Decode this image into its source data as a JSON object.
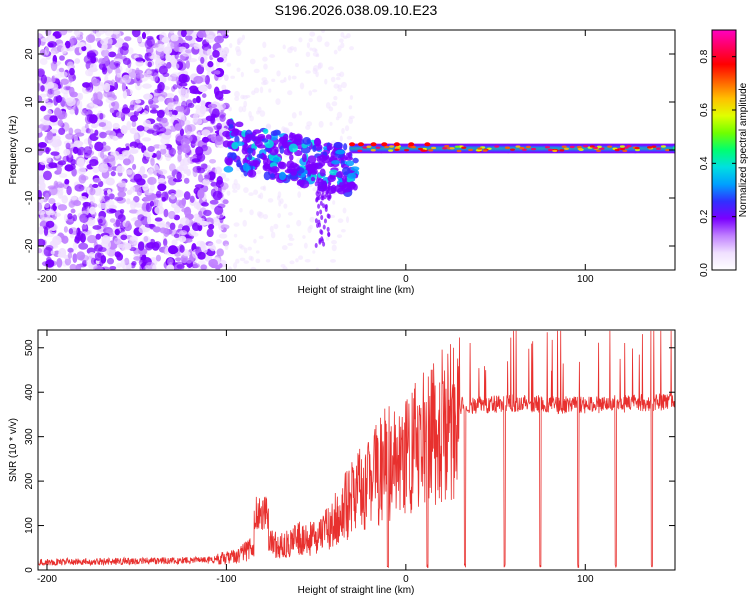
{
  "colors": {
    "signal_line": "#e8302e",
    "colormap": [
      "#ffffff",
      "#f0e0ff",
      "#c080ff",
      "#7a00ff",
      "#3030ff",
      "#00a0ff",
      "#00e0e0",
      "#00ff70",
      "#70ff00",
      "#e0ff00",
      "#ffc000",
      "#ff6000",
      "#ff0000",
      "#ff0060",
      "#ff00c0"
    ]
  },
  "chart_data": [
    {
      "type": "heatmap",
      "title": "S196.2026.038.09.10.E23",
      "xlabel": "Height of straight line (km)",
      "ylabel": "Frequency (Hz)",
      "xlim": [
        -205,
        150
      ],
      "ylim": [
        -25,
        25
      ],
      "xticks": [
        -200,
        -100,
        0,
        100
      ],
      "yticks": [
        -20,
        -10,
        0,
        10,
        20
      ],
      "colorbar": {
        "label": "Normalized spectral amplitude",
        "range": [
          0.0,
          0.9
        ],
        "ticks": [
          "0.0",
          "0.2",
          "0.4",
          "0.6",
          "0.8"
        ]
      },
      "description_regions": [
        {
          "x_range": [
            -205,
            -100
          ],
          "kind": "broadband noise"
        },
        {
          "x_range": [
            -100,
            -30
          ],
          "kind": "scattered energy near 0 Hz"
        },
        {
          "x_range": [
            -30,
            150
          ],
          "kind": "narrow band at ~0 Hz"
        }
      ]
    },
    {
      "type": "line",
      "xlabel": "Height of straight line (km)",
      "ylabel": "SNR (10 * v/v)",
      "xlim": [
        -205,
        150
      ],
      "ylim": [
        0,
        540
      ],
      "xticks": [
        -200,
        -100,
        0,
        100
      ],
      "yticks": [
        0,
        100,
        200,
        300,
        400,
        500
      ],
      "series": [
        {
          "name": "SNR",
          "envelope_x": [
            -205,
            -150,
            -110,
            -95,
            -80,
            -70,
            -60,
            -50,
            -40,
            -30,
            -20,
            -10,
            0,
            10,
            20,
            30,
            60,
            100,
            150
          ],
          "envelope_y": [
            18,
            20,
            22,
            30,
            60,
            55,
            70,
            70,
            110,
            160,
            210,
            240,
            265,
            290,
            320,
            370,
            375,
            370,
            380
          ],
          "dip_x": [
            -10,
            12,
            33,
            55,
            75,
            96,
            117,
            137
          ],
          "spike_x": [
            -82,
            -79
          ]
        }
      ]
    }
  ]
}
